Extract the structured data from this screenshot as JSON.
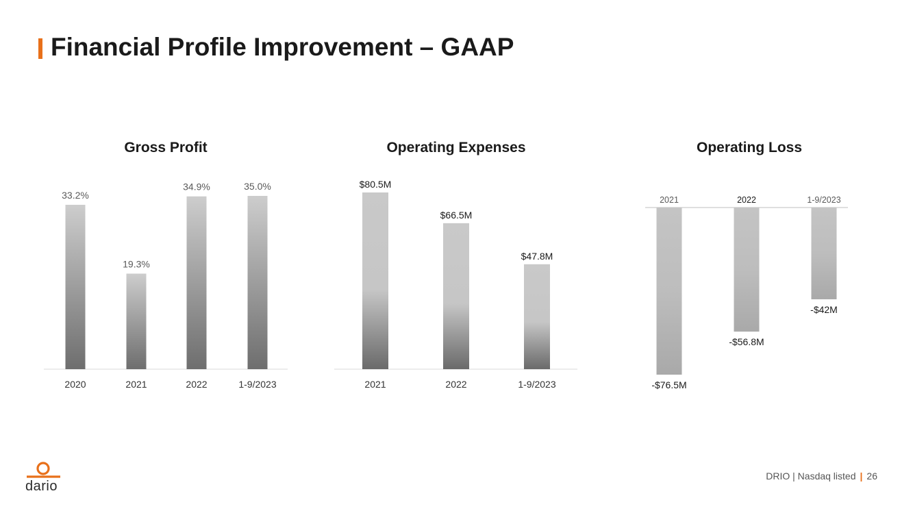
{
  "header": {
    "title": "Financial Profile Improvement – GAAP"
  },
  "colors": {
    "accent": "#e8701a",
    "bar_light": "#cfcfcf",
    "bar_dark": "#6e6e6e"
  },
  "chart_data": [
    {
      "type": "bar",
      "title": "Gross Profit",
      "categories": [
        "2020",
        "2021",
        "2022",
        "1-9/2023"
      ],
      "values": [
        33.2,
        19.3,
        34.9,
        35.0
      ],
      "data_labels": [
        "33.2%",
        "19.3%",
        "34.9%",
        "35.0%"
      ],
      "unit": "%",
      "ylim": [
        0,
        35.0
      ]
    },
    {
      "type": "bar",
      "title": "Operating Expenses",
      "categories": [
        "2021",
        "2022",
        "1-9/2023"
      ],
      "values": [
        80.5,
        66.5,
        47.8
      ],
      "data_labels": [
        "$80.5M",
        "$66.5M",
        "$47.8M"
      ],
      "unit": "$M",
      "ylim": [
        0,
        80.5
      ]
    },
    {
      "type": "bar",
      "title": "Operating Loss",
      "categories": [
        "2021",
        "2022",
        "1-9/2023"
      ],
      "values": [
        -76.5,
        -56.8,
        -42
      ],
      "data_labels": [
        "-$76.5M",
        "-$56.8M",
        "-$42M"
      ],
      "unit": "$M",
      "ylim": [
        -76.5,
        0
      ]
    }
  ],
  "footer": {
    "company": "DRIO | Nasdaq listed",
    "separator": "|",
    "page": "26"
  },
  "logo": {
    "text": "dario"
  }
}
